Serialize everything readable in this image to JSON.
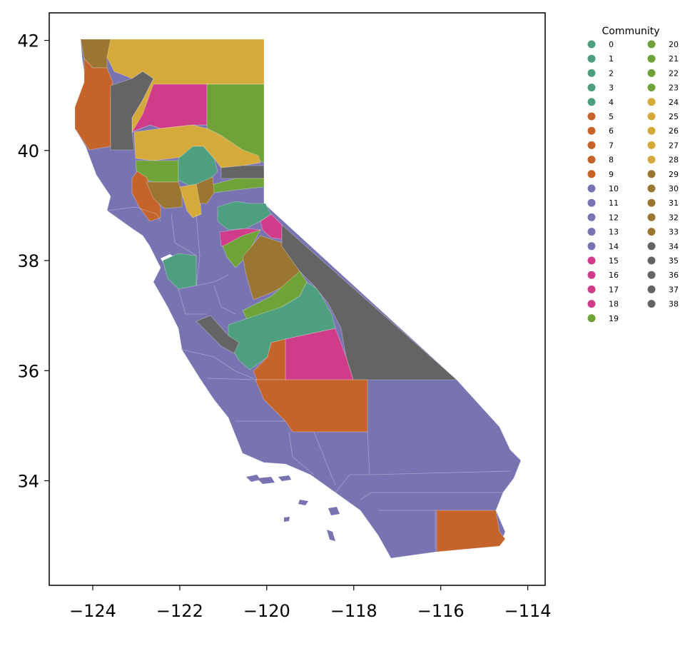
{
  "chart_data": {
    "type": "choropleth",
    "title": "",
    "xlabel": "",
    "ylabel": "",
    "xlim": [
      -125,
      -113.6
    ],
    "ylim": [
      32.1,
      42.5
    ],
    "x_ticks": [
      "−124",
      "−122",
      "−120",
      "−118",
      "−116",
      "−114"
    ],
    "y_ticks": [
      "34",
      "36",
      "38",
      "40",
      "42"
    ],
    "legend": {
      "title": "Community",
      "placement": "outside-right",
      "entries": [
        {
          "label": "0",
          "color": "#4e9e80"
        },
        {
          "label": "1",
          "color": "#4e9e80"
        },
        {
          "label": "2",
          "color": "#4e9e80"
        },
        {
          "label": "3",
          "color": "#4e9e80"
        },
        {
          "label": "4",
          "color": "#4e9e80"
        },
        {
          "label": "5",
          "color": "#c4642a"
        },
        {
          "label": "6",
          "color": "#c4642a"
        },
        {
          "label": "7",
          "color": "#c4642a"
        },
        {
          "label": "8",
          "color": "#c4642a"
        },
        {
          "label": "9",
          "color": "#c4642a"
        },
        {
          "label": "10",
          "color": "#7873b1"
        },
        {
          "label": "11",
          "color": "#7873b1"
        },
        {
          "label": "12",
          "color": "#7873b1"
        },
        {
          "label": "13",
          "color": "#7873b1"
        },
        {
          "label": "14",
          "color": "#7873b1"
        },
        {
          "label": "15",
          "color": "#ce3c8a"
        },
        {
          "label": "16",
          "color": "#ce3c8a"
        },
        {
          "label": "17",
          "color": "#ce3c8a"
        },
        {
          "label": "18",
          "color": "#ce3c8a"
        },
        {
          "label": "19",
          "color": "#6fa33a"
        },
        {
          "label": "20",
          "color": "#6fa33a"
        },
        {
          "label": "21",
          "color": "#6fa33a"
        },
        {
          "label": "22",
          "color": "#6fa33a"
        },
        {
          "label": "23",
          "color": "#6fa33a"
        },
        {
          "label": "24",
          "color": "#d6a93b"
        },
        {
          "label": "25",
          "color": "#d6a93b"
        },
        {
          "label": "26",
          "color": "#d6a93b"
        },
        {
          "label": "27",
          "color": "#d6a93b"
        },
        {
          "label": "28",
          "color": "#d6a93b"
        },
        {
          "label": "29",
          "color": "#9a7632"
        },
        {
          "label": "30",
          "color": "#9a7632"
        },
        {
          "label": "31",
          "color": "#9a7632"
        },
        {
          "label": "32",
          "color": "#9a7632"
        },
        {
          "label": "33",
          "color": "#9a7632"
        },
        {
          "label": "34",
          "color": "#646464"
        },
        {
          "label": "35",
          "color": "#646464"
        },
        {
          "label": "36",
          "color": "#646464"
        },
        {
          "label": "37",
          "color": "#646464"
        },
        {
          "label": "38",
          "color": "#646464"
        }
      ]
    },
    "region_colors": {
      "teal": "#4e9e80",
      "orange": "#c4642a",
      "purple": "#7873b1",
      "magenta": "#ce3c8a",
      "green": "#6fa33a",
      "gold": "#d6a93b",
      "brown": "#9a7632",
      "gray": "#646464"
    }
  }
}
